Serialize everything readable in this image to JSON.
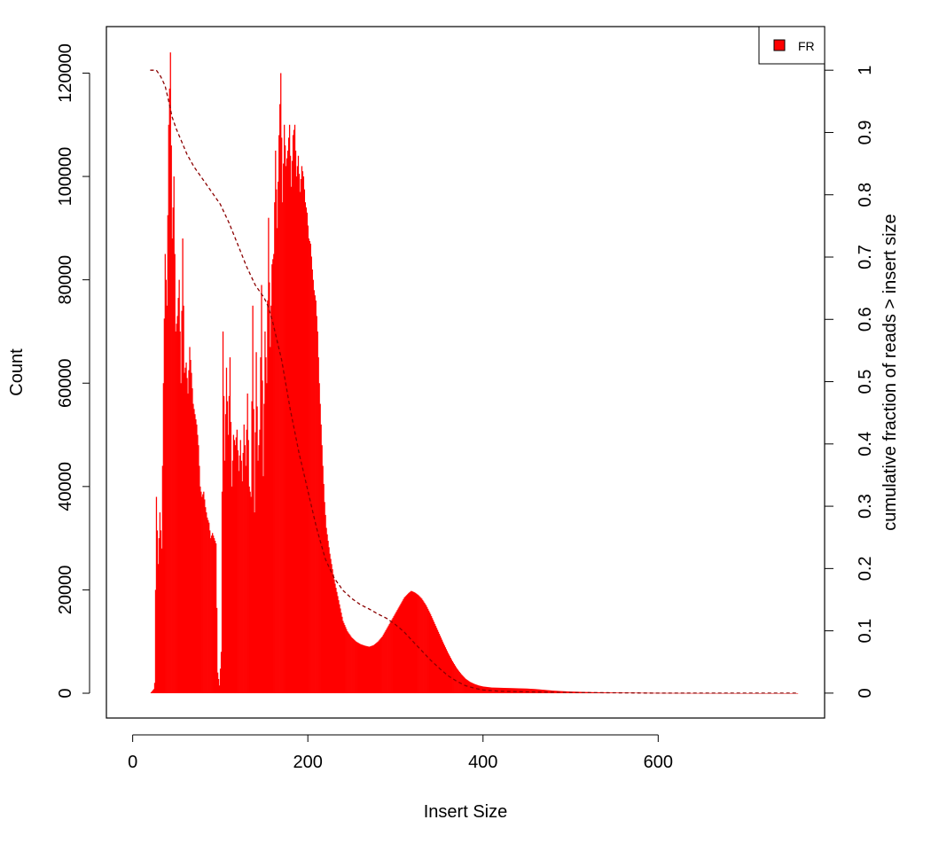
{
  "chart_data": {
    "type": "bar",
    "title": "",
    "xlabel": "Insert Size",
    "ylabel": "Count",
    "y2label": "cumulative fraction of reads > insert size",
    "xlim": [
      -30,
      790
    ],
    "ylim": [
      -4800,
      129000
    ],
    "y2lim": [
      -0.04,
      1.07
    ],
    "xticks": [
      0,
      200,
      400,
      600
    ],
    "yticks": [
      0,
      20000,
      40000,
      60000,
      80000,
      100000,
      120000
    ],
    "y2ticks": [
      0,
      0.1,
      0.2,
      0.3,
      0.4,
      0.5,
      0.6,
      0.7,
      0.8,
      0.9,
      1
    ],
    "legend": {
      "position": "top-right",
      "entries": [
        {
          "label": "FR",
          "color": "#ff0000"
        }
      ]
    },
    "grid": false,
    "histogram": {
      "name": "FR",
      "color": "#ff0000",
      "x_range": [
        20,
        760
      ],
      "profile": [
        [
          20,
          0
        ],
        [
          24,
          800
        ],
        [
          25,
          2000
        ],
        [
          27,
          38000
        ],
        [
          29,
          25000
        ],
        [
          31,
          35000
        ],
        [
          33,
          28000
        ],
        [
          35,
          60000
        ],
        [
          37,
          85000
        ],
        [
          39,
          75000
        ],
        [
          41,
          110000
        ],
        [
          43,
          124000
        ],
        [
          45,
          88000
        ],
        [
          47,
          100000
        ],
        [
          49,
          70000
        ],
        [
          51,
          73000
        ],
        [
          53,
          80000
        ],
        [
          55,
          60000
        ],
        [
          57,
          88000
        ],
        [
          59,
          62000
        ],
        [
          61,
          64000
        ],
        [
          63,
          58000
        ],
        [
          65,
          67000
        ],
        [
          67,
          62000
        ],
        [
          69,
          56000
        ],
        [
          71,
          54000
        ],
        [
          73,
          52000
        ],
        [
          75,
          48000
        ],
        [
          77,
          40000
        ],
        [
          79,
          38000
        ],
        [
          81,
          39000
        ],
        [
          83,
          36000
        ],
        [
          85,
          34000
        ],
        [
          87,
          33000
        ],
        [
          89,
          30000
        ],
        [
          91,
          31000
        ],
        [
          93,
          30000
        ],
        [
          95,
          29000
        ],
        [
          97,
          4000
        ],
        [
          99,
          1500
        ],
        [
          101,
          8000
        ],
        [
          103,
          70000
        ],
        [
          105,
          45000
        ],
        [
          107,
          63000
        ],
        [
          109,
          50000
        ],
        [
          111,
          65000
        ],
        [
          113,
          40000
        ],
        [
          115,
          50000
        ],
        [
          117,
          48000
        ],
        [
          119,
          51000
        ],
        [
          121,
          43000
        ],
        [
          123,
          49000
        ],
        [
          125,
          41000
        ],
        [
          127,
          52000
        ],
        [
          129,
          44000
        ],
        [
          131,
          58000
        ],
        [
          133,
          40000
        ],
        [
          135,
          38000
        ],
        [
          137,
          75000
        ],
        [
          139,
          35000
        ],
        [
          141,
          66000
        ],
        [
          143,
          45000
        ],
        [
          145,
          51000
        ],
        [
          147,
          79000
        ],
        [
          149,
          42000
        ],
        [
          151,
          70000
        ],
        [
          153,
          60000
        ],
        [
          155,
          92000
        ],
        [
          157,
          67000
        ],
        [
          159,
          83000
        ],
        [
          161,
          85000
        ],
        [
          163,
          105000
        ],
        [
          165,
          90000
        ],
        [
          167,
          108000
        ],
        [
          169,
          120000
        ],
        [
          171,
          95000
        ],
        [
          173,
          110000
        ],
        [
          175,
          102000
        ],
        [
          177,
          105000
        ],
        [
          179,
          110000
        ],
        [
          181,
          98000
        ],
        [
          183,
          108000
        ],
        [
          185,
          110000
        ],
        [
          187,
          100000
        ],
        [
          189,
          104000
        ],
        [
          191,
          97000
        ],
        [
          193,
          102000
        ],
        [
          195,
          100000
        ],
        [
          197,
          95000
        ],
        [
          199,
          93000
        ],
        [
          201,
          88000
        ],
        [
          203,
          87000
        ],
        [
          205,
          82000
        ],
        [
          207,
          78000
        ],
        [
          209,
          76000
        ],
        [
          211,
          70000
        ],
        [
          213,
          60000
        ],
        [
          215,
          52000
        ],
        [
          217,
          44000
        ],
        [
          219,
          37000
        ],
        [
          221,
          32000
        ],
        [
          225,
          27000
        ],
        [
          230,
          22000
        ],
        [
          235,
          18000
        ],
        [
          240,
          14000
        ],
        [
          245,
          12000
        ],
        [
          250,
          10800
        ],
        [
          255,
          10000
        ],
        [
          260,
          9500
        ],
        [
          265,
          9200
        ],
        [
          270,
          9000
        ],
        [
          275,
          9300
        ],
        [
          280,
          10000
        ],
        [
          285,
          11000
        ],
        [
          290,
          12500
        ],
        [
          295,
          14000
        ],
        [
          300,
          15500
        ],
        [
          305,
          17000
        ],
        [
          310,
          18500
        ],
        [
          315,
          19400
        ],
        [
          318,
          19800
        ],
        [
          322,
          19500
        ],
        [
          326,
          19000
        ],
        [
          330,
          18300
        ],
        [
          335,
          17000
        ],
        [
          340,
          15300
        ],
        [
          345,
          13400
        ],
        [
          350,
          11500
        ],
        [
          355,
          9600
        ],
        [
          360,
          7800
        ],
        [
          365,
          6200
        ],
        [
          370,
          4800
        ],
        [
          375,
          3700
        ],
        [
          380,
          2800
        ],
        [
          385,
          2200
        ],
        [
          390,
          1800
        ],
        [
          395,
          1500
        ],
        [
          400,
          1300
        ],
        [
          410,
          1100
        ],
        [
          420,
          1050
        ],
        [
          430,
          1000
        ],
        [
          440,
          950
        ],
        [
          450,
          900
        ],
        [
          460,
          800
        ],
        [
          470,
          650
        ],
        [
          480,
          500
        ],
        [
          490,
          400
        ],
        [
          500,
          320
        ],
        [
          520,
          220
        ],
        [
          540,
          150
        ],
        [
          560,
          100
        ],
        [
          600,
          50
        ],
        [
          650,
          25
        ],
        [
          700,
          10
        ],
        [
          760,
          0
        ]
      ]
    },
    "cumulative": {
      "color": "#8b0000",
      "style": "dashed",
      "points": [
        [
          20,
          1.0
        ],
        [
          27,
          1.0
        ],
        [
          32,
          0.99
        ],
        [
          37,
          0.975
        ],
        [
          42,
          0.945
        ],
        [
          45,
          0.925
        ],
        [
          50,
          0.905
        ],
        [
          56,
          0.885
        ],
        [
          62,
          0.865
        ],
        [
          70,
          0.845
        ],
        [
          80,
          0.825
        ],
        [
          90,
          0.805
        ],
        [
          100,
          0.785
        ],
        [
          110,
          0.755
        ],
        [
          120,
          0.72
        ],
        [
          130,
          0.685
        ],
        [
          140,
          0.655
        ],
        [
          150,
          0.635
        ],
        [
          155,
          0.62
        ],
        [
          160,
          0.595
        ],
        [
          165,
          0.565
        ],
        [
          170,
          0.535
        ],
        [
          175,
          0.495
        ],
        [
          180,
          0.455
        ],
        [
          185,
          0.42
        ],
        [
          190,
          0.385
        ],
        [
          195,
          0.355
        ],
        [
          200,
          0.325
        ],
        [
          205,
          0.295
        ],
        [
          210,
          0.265
        ],
        [
          215,
          0.24
        ],
        [
          220,
          0.215
        ],
        [
          225,
          0.2
        ],
        [
          230,
          0.185
        ],
        [
          240,
          0.165
        ],
        [
          250,
          0.152
        ],
        [
          260,
          0.142
        ],
        [
          270,
          0.135
        ],
        [
          280,
          0.127
        ],
        [
          290,
          0.12
        ],
        [
          300,
          0.11
        ],
        [
          310,
          0.098
        ],
        [
          320,
          0.083
        ],
        [
          330,
          0.068
        ],
        [
          340,
          0.053
        ],
        [
          350,
          0.04
        ],
        [
          360,
          0.028
        ],
        [
          370,
          0.019
        ],
        [
          380,
          0.012
        ],
        [
          390,
          0.008
        ],
        [
          400,
          0.005
        ],
        [
          420,
          0.003
        ],
        [
          450,
          0.002
        ],
        [
          500,
          0.001
        ],
        [
          550,
          0.0005
        ],
        [
          600,
          0.0
        ],
        [
          760,
          0.0
        ]
      ]
    }
  }
}
